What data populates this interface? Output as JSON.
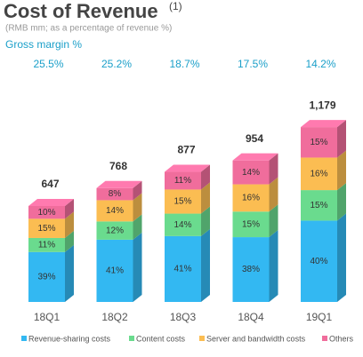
{
  "chart_data": {
    "type": "stacked-bar-3d",
    "title": "Cost of Revenue",
    "title_note": "(1)",
    "subtitle": "(RMB mm; as a percentage of revenue %)",
    "categories": [
      "18Q1",
      "18Q2",
      "18Q3",
      "18Q4",
      "19Q1"
    ],
    "gross_margin": {
      "label": "Gross  margin  %",
      "values": [
        25.5,
        25.2,
        18.7,
        17.5,
        14.2
      ],
      "value_labels": [
        "25.5%",
        "25.2%",
        "18.7%",
        "17.5%",
        "14.2%"
      ],
      "color": "#1a9fc9"
    },
    "totals": {
      "values": [
        647,
        768,
        877,
        954,
        1179
      ],
      "value_labels": [
        "647",
        "768",
        "877",
        "954",
        "1,179"
      ]
    },
    "series": [
      {
        "name": "Revenue-sharing costs",
        "color": "#33b8f2",
        "values": [
          39,
          41,
          41,
          38,
          40
        ],
        "value_labels": [
          "39%",
          "41%",
          "41%",
          "38%",
          "40%"
        ]
      },
      {
        "name": "Content costs",
        "color": "#6adb8e",
        "values": [
          11,
          12,
          14,
          15,
          15
        ],
        "value_labels": [
          "11%",
          "12%",
          "14%",
          "15%",
          "15%"
        ]
      },
      {
        "name": "Server and bandwidth costs",
        "color": "#fbbd52",
        "values": [
          15,
          14,
          15,
          16,
          16
        ],
        "value_labels": [
          "15%",
          "14%",
          "15%",
          "16%",
          "16%"
        ]
      },
      {
        "name": "Others",
        "color": "#f06d9c",
        "values": [
          10,
          8,
          11,
          14,
          15
        ],
        "value_labels": [
          "10%",
          "8%",
          "11%",
          "14%",
          "15%"
        ]
      }
    ]
  }
}
